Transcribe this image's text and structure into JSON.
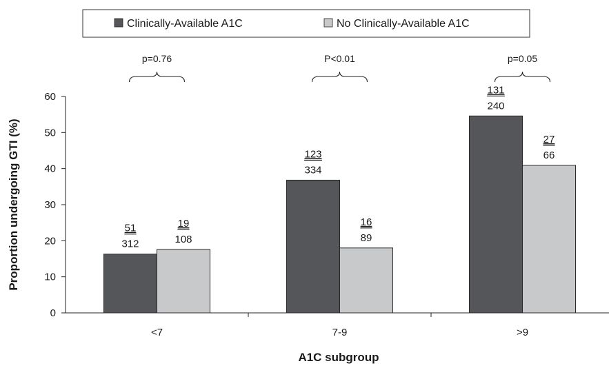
{
  "chart_data": {
    "type": "bar",
    "categories": [
      "<7",
      "7-9",
      ">9"
    ],
    "series": [
      {
        "name": "Clinically-Available A1C",
        "color": "#555659",
        "values": [
          16.3,
          36.8,
          54.6
        ],
        "numerators": [
          "51",
          "123",
          "131"
        ],
        "denominators": [
          "312",
          "334",
          "240"
        ]
      },
      {
        "name": "No Clinically-Available A1C",
        "color": "#c8c9cb",
        "values": [
          17.6,
          18.0,
          40.9
        ],
        "numerators": [
          "19",
          "16",
          "27"
        ],
        "denominators": [
          "108",
          "89",
          "66"
        ]
      }
    ],
    "p_values": [
      "p=0.76",
      "P<0.01",
      "p=0.05"
    ],
    "xlabel": "A1C subgroup",
    "ylabel": "Proportion undergoing GTI (%)",
    "ylim": [
      0,
      60
    ],
    "yticks": [
      "0",
      "10",
      "20",
      "30",
      "40",
      "50",
      "60"
    ],
    "grid": false,
    "legend_position": "top"
  }
}
